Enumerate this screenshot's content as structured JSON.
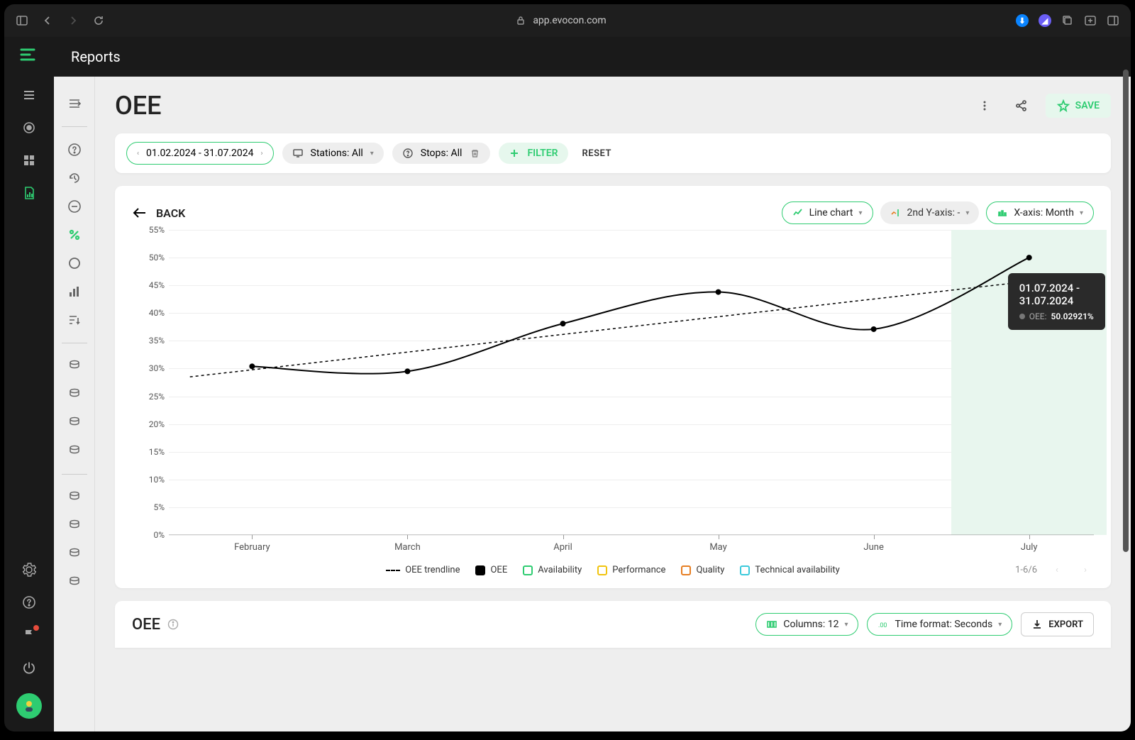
{
  "browser": {
    "url": "app.evocon.com"
  },
  "header": {
    "title": "Reports"
  },
  "page": {
    "title": "OEE",
    "save_label": "SAVE"
  },
  "filters": {
    "date_range": "01.02.2024 - 31.07.2024",
    "stations_label": "Stations: All",
    "stops_label": "Stops: All",
    "filter_btn": "FILTER",
    "reset_btn": "RESET"
  },
  "chart": {
    "back_label": "BACK",
    "line_chart_label": "Line chart",
    "second_y_axis_label": "2nd Y-axis: -",
    "x_axis_label": "X-axis: Month",
    "type": "line",
    "y_label_suffix": "%",
    "ylim": [
      0,
      55
    ],
    "ytick_step": 5,
    "yticks": [
      0,
      5,
      10,
      15,
      20,
      25,
      30,
      35,
      40,
      45,
      50,
      55
    ],
    "x_categories": [
      "February",
      "March",
      "April",
      "May",
      "June",
      "July"
    ],
    "series_oee": {
      "label": "OEE",
      "color": "#000000",
      "line_width": 2,
      "marker": "circle",
      "marker_size": 4,
      "values": [
        30.4,
        29.5,
        38.1,
        43.8,
        37.1,
        50.0
      ]
    },
    "series_trend": {
      "label": "OEE trendline",
      "color": "#000000",
      "dash": "4,4",
      "line_width": 1.5,
      "start_value": 28.5,
      "end_value": 47.0
    },
    "background_color": "#ffffff",
    "grid_color": "#eeeeee",
    "highlight_color": "#e8f6ee",
    "highlight_index": 5,
    "tooltip": {
      "title": "01.07.2024 - 31.07.2024",
      "series_label": "OEE:",
      "value": "50.02921%"
    },
    "legend": {
      "items": [
        {
          "label": "OEE trendline",
          "style": "dash",
          "color": "#000000"
        },
        {
          "label": "OEE",
          "style": "box-filled",
          "color": "#000000"
        },
        {
          "label": "Availability",
          "style": "box-outline",
          "color": "#2ecc71"
        },
        {
          "label": "Performance",
          "style": "box-outline",
          "color": "#f1c40f"
        },
        {
          "label": "Quality",
          "style": "box-outline",
          "color": "#e67e22"
        },
        {
          "label": "Technical availability",
          "style": "box-outline",
          "color": "#3bc9db"
        }
      ],
      "pager_text": "1-6/6"
    }
  },
  "bottom": {
    "title": "OEE",
    "columns_label": "Columns: 12",
    "time_format_label": "Time format: Seconds",
    "export_label": "EXPORT"
  },
  "colors": {
    "accent": "#2ecc71",
    "accent_light": "#e6f7ed",
    "dark_bg": "#1a1a1a",
    "content_bg": "#eeeeee"
  }
}
